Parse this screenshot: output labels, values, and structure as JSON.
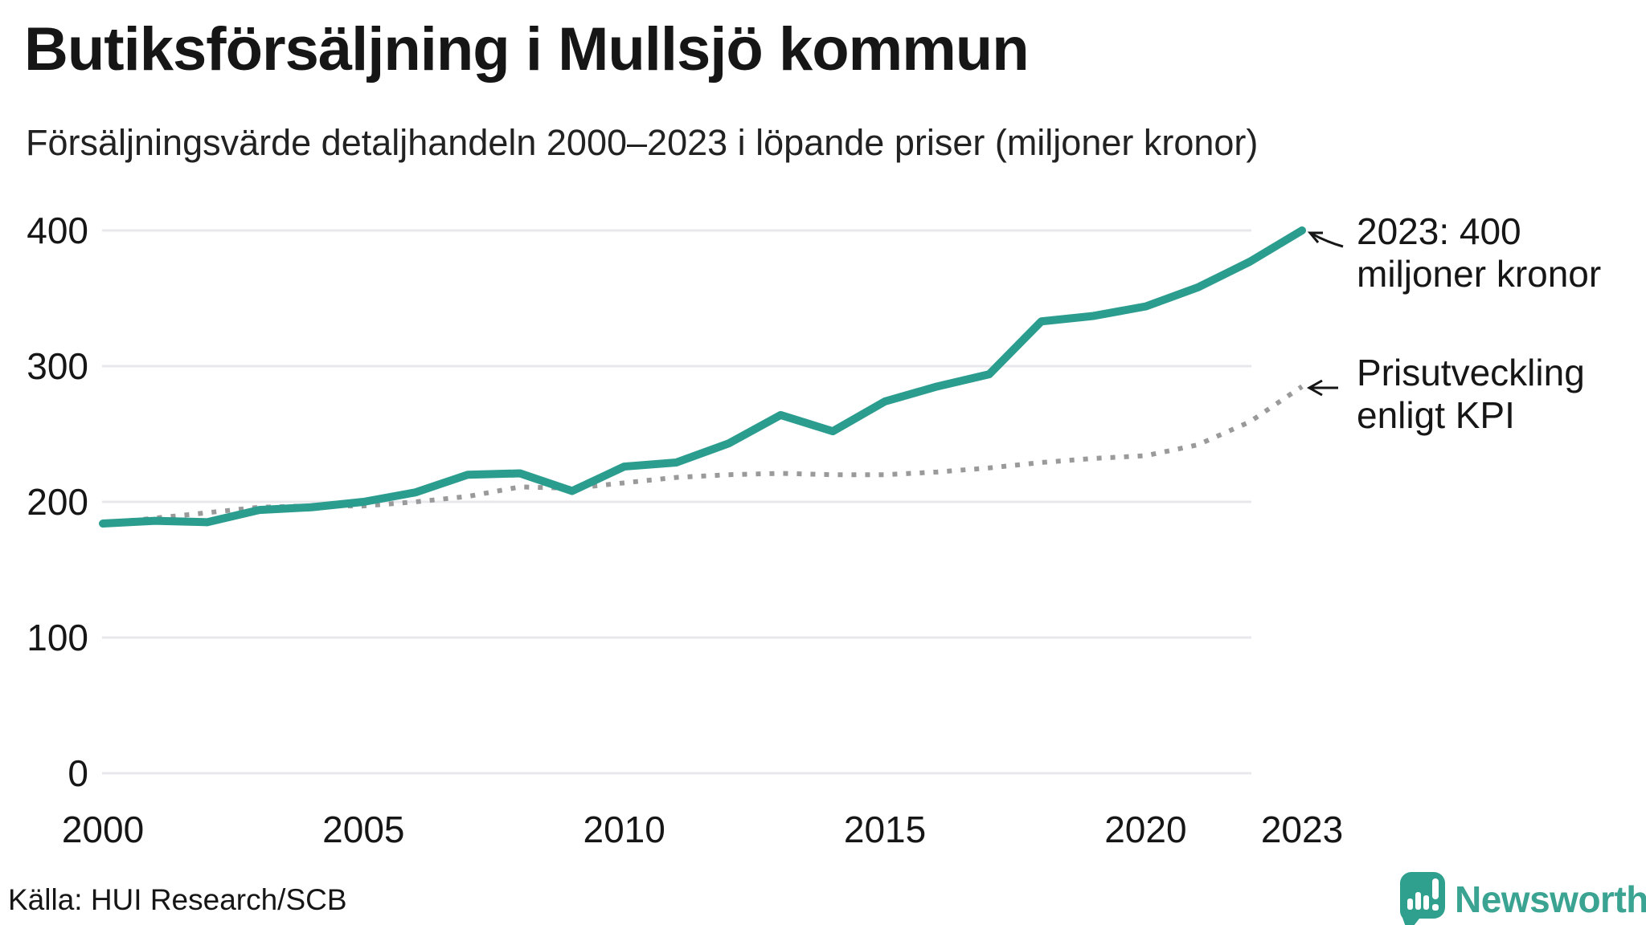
{
  "title": "Butiksförsäljning i Mullsjö kommun",
  "subtitle": "Försäljningsvärde detaljhandeln 2000–2023 i löpande priser (miljoner kronor)",
  "source": "Källa: HUI Research/SCB",
  "logo": {
    "text": "Newsworthy",
    "icon": "speech-bubble-bar-chart"
  },
  "annotations": {
    "sales_endpoint": "2023: 400\nmiljoner kronor",
    "kpi_endpoint": "Prisutveckling\nenligt KPI"
  },
  "colors": {
    "sales_line": "#2a9d8f",
    "kpi_line": "#9a9a9a",
    "gridline": "#e8e8ec",
    "text": "#161616",
    "logo": "#3aa392"
  },
  "chart_data": {
    "type": "line",
    "title": "Butiksförsäljning i Mullsjö kommun",
    "subtitle": "Försäljningsvärde detaljhandeln 2000–2023 i löpande priser (miljoner kronor)",
    "x": [
      2000,
      2001,
      2002,
      2003,
      2004,
      2005,
      2006,
      2007,
      2008,
      2009,
      2010,
      2011,
      2012,
      2013,
      2014,
      2015,
      2016,
      2017,
      2018,
      2019,
      2020,
      2021,
      2022,
      2023
    ],
    "series": [
      {
        "name": "Försäljningsvärde löpande priser",
        "style": "solid",
        "color": "#2a9d8f",
        "values": [
          184,
          186,
          185,
          194,
          196,
          200,
          207,
          220,
          221,
          208,
          226,
          229,
          243,
          264,
          252,
          274,
          285,
          294,
          333,
          337,
          344,
          358,
          377,
          400
        ]
      },
      {
        "name": "Prisutveckling enligt KPI",
        "style": "dotted",
        "color": "#9a9a9a",
        "values": [
          184,
          188,
          192,
          196,
          197,
          197,
          200,
          204,
          211,
          210,
          214,
          218,
          220,
          221,
          220,
          220,
          222,
          225,
          229,
          232,
          234,
          242,
          259,
          285
        ]
      }
    ],
    "yticks": [
      0,
      100,
      200,
      300,
      400
    ],
    "xticks": [
      2000,
      2005,
      2010,
      2015,
      2020,
      2023
    ],
    "ylim": [
      0,
      430
    ],
    "xlim": [
      2000,
      2023
    ],
    "grid": "horizontal-only",
    "legend": "annotated-endpoints"
  }
}
